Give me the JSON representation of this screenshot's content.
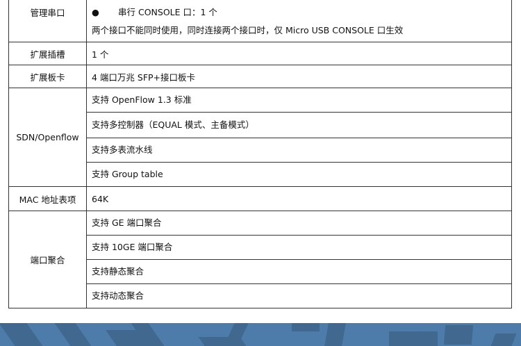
{
  "rows": [
    {
      "key": "管理串口",
      "lines": [
        "串行 CONSOLE 口：1 个",
        "两个接口不能同时使用，同时连接两个接口时，仅 Micro USB CONSOLE 口生效"
      ]
    },
    {
      "key": "扩展插槽",
      "lines": [
        "1 个"
      ]
    },
    {
      "key": "扩展板卡",
      "lines": [
        "4 端口万兆 SFP+接口板卡"
      ]
    },
    {
      "key": "SDN/Openflow",
      "lines": [
        "支持 OpenFlow 1.3 标准",
        "支持多控制器（EQUAL 模式、主备模式）",
        "支持多表流水线",
        "支持 Group table"
      ]
    },
    {
      "key": "MAC 地址表项",
      "lines": [
        "64K"
      ]
    },
    {
      "key": "端口聚合",
      "lines": [
        "支持 GE 端口聚合",
        "支持 10GE 端口聚合",
        "支持静态聚合",
        "支持动态聚合"
      ]
    }
  ],
  "colors": {
    "band": "#4d7caa",
    "border": "#333333"
  }
}
